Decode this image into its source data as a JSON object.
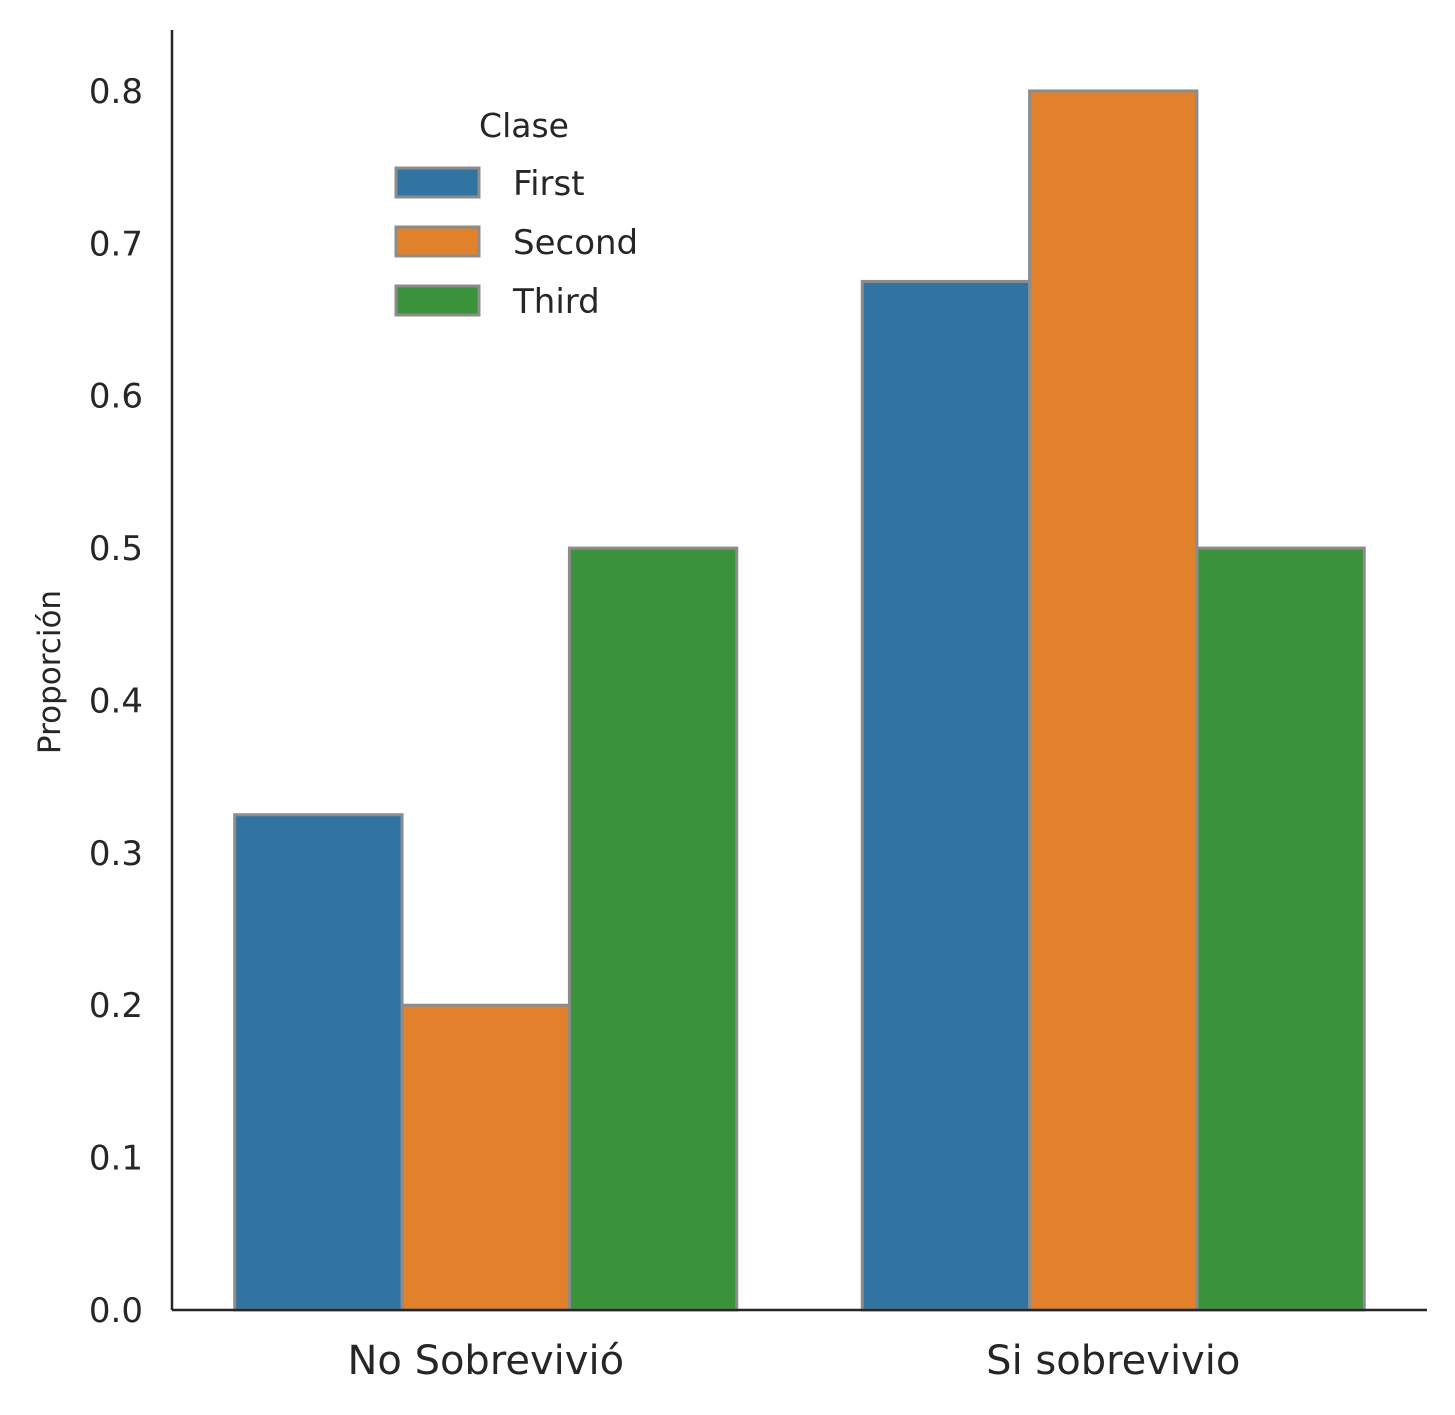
{
  "chart_data": {
    "type": "bar",
    "ylabel": "Proporción",
    "xlabel": "",
    "categories": [
      "No Sobrevivió",
      "Si sobrevivio"
    ],
    "yticks": [
      "0.0",
      "0.1",
      "0.2",
      "0.3",
      "0.4",
      "0.5",
      "0.6",
      "0.7",
      "0.8"
    ],
    "ylim": [
      0,
      0.84
    ],
    "grid": false,
    "legend": {
      "title": "Clase",
      "placement": "upper-left"
    },
    "series": [
      {
        "name": "First",
        "color": "#3274a1",
        "values": [
          0.325,
          0.675
        ]
      },
      {
        "name": "Second",
        "color": "#e1812c",
        "values": [
          0.2,
          0.8
        ]
      },
      {
        "name": "Third",
        "color": "#3a923a",
        "values": [
          0.5,
          0.5
        ]
      }
    ],
    "bar_edge_color": "#8c8c8c"
  }
}
